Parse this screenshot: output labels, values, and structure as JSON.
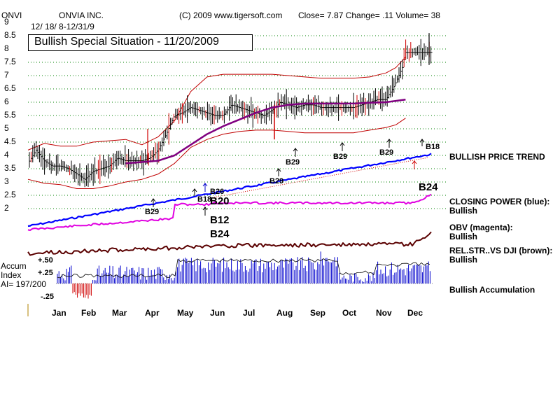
{
  "header": {
    "ticker": "ONVI",
    "company": "ONVIA INC.",
    "copyright": "(C) 2009 www.tigersoft.com",
    "stats": "Close=  7.87  Change= .11 Volume= 38",
    "date_range": "12/ 18/ 8-12/31/9"
  },
  "title": "Bullish Special Situation - 11/20/2009",
  "price_axis": {
    "ticks": [
      "9",
      "8.5",
      "8",
      "7.5",
      "7",
      "6.5",
      "6",
      "5.5",
      "5",
      "4.5",
      "4",
      "3.5",
      "3",
      "2.5",
      "2"
    ]
  },
  "months": [
    "Jan",
    "Feb",
    "Mar",
    "Apr",
    "May",
    "Jun",
    "Jul",
    "Aug",
    "Sep",
    "Oct",
    "Nov",
    "Dec"
  ],
  "signals": [
    "B29",
    "B18",
    "B26",
    "B20",
    "B12",
    "B24",
    "B29",
    "B29",
    "B29",
    "B29",
    "B18",
    "B24",
    "B24"
  ],
  "right_labels": {
    "trend": "BULLISH PRICE TREND",
    "cp_title": "CLOSING POWER (blue):",
    "cp_value": "Bullish",
    "obv_title": "OBV (magenta):",
    "obv_value": "Bullish",
    "rs_title": "REL.STR..VS DJI (brown):",
    "rs_value": "Bullish",
    "accum": "Bullish Accumulation"
  },
  "accum_panel": {
    "label1": "Accum",
    "label2": "Index",
    "ai": "AI= 197/200",
    "ticks": [
      "+.50",
      "+.25",
      "-.25"
    ]
  },
  "colors": {
    "price_bars": "#000000",
    "down_bars": "#d00000",
    "moving_average": "#800080",
    "bands": "#c00000",
    "trend_line": "#0000ff",
    "closing_power": "#0000cc",
    "obv": "#e000e0",
    "rel_strength": "#5a0000",
    "accum_bars": "#0000cc",
    "accum_negative": "#d00000",
    "grid": "#008000"
  },
  "chart_data": {
    "type": "line",
    "title": "Bullish Special Situation - 11/20/2009",
    "x_ticks": [
      "Jan",
      "Feb",
      "Mar",
      "Apr",
      "May",
      "Jun",
      "Jul",
      "Aug",
      "Sep",
      "Oct",
      "Nov",
      "Dec"
    ],
    "ylim": [
      2,
      9
    ],
    "grid": true,
    "series": [
      {
        "kind": "price_close",
        "x": [
          0,
          0.25,
          0.5,
          0.75,
          1,
          1.25,
          1.5,
          1.75,
          2,
          2.25,
          2.5,
          2.75,
          3,
          3.25,
          3.5,
          3.75,
          4,
          4.25,
          4.5,
          4.75,
          5,
          5.25,
          5.5,
          5.75,
          6,
          6.25,
          6.5,
          6.75,
          7,
          7.25,
          7.5,
          7.75,
          8,
          8.25,
          8.5,
          8.75,
          9,
          9.25,
          9.5,
          9.75,
          10,
          10.25,
          10.5,
          10.75,
          11,
          11.25,
          11.5,
          11.6
        ],
        "values": [
          3.7,
          4.2,
          3.8,
          3.6,
          3.6,
          3.5,
          3.3,
          3.1,
          3.4,
          3.5,
          3.6,
          3.9,
          3.8,
          3.8,
          3.8,
          3.9,
          4.2,
          4.8,
          5.5,
          5.6,
          5.8,
          5.7,
          5.6,
          5.5,
          5.5,
          5.9,
          5.8,
          5.7,
          5.6,
          5.5,
          5.7,
          6.0,
          5.9,
          5.8,
          5.9,
          5.9,
          5.8,
          5.8,
          5.8,
          5.8,
          5.8,
          5.9,
          6.0,
          6.1,
          6.1,
          6.6,
          7.3,
          7.87
        ]
      },
      {
        "kind": "moving_average",
        "x": [
          3,
          3.5,
          4,
          4.5,
          5,
          5.5,
          6,
          6.5,
          7,
          7.5,
          8,
          8.5,
          9,
          9.5,
          10,
          10.5,
          11,
          11.6
        ],
        "values": [
          3.7,
          3.75,
          3.8,
          4.0,
          4.4,
          4.8,
          5.1,
          5.35,
          5.6,
          5.8,
          5.9,
          5.95,
          5.95,
          5.95,
          5.95,
          5.98,
          6.0,
          6.1
        ]
      },
      {
        "kind": "upper_band",
        "x": [
          0,
          0.5,
          1,
          1.5,
          2,
          2.5,
          3,
          3.5,
          4,
          4.5,
          5,
          5.5,
          6,
          6.5,
          7,
          7.5,
          8,
          8.5,
          9,
          9.5,
          10,
          10.5,
          11,
          11.3,
          11.6
        ],
        "values": [
          4.2,
          4.45,
          4.35,
          4.35,
          4.5,
          4.55,
          4.6,
          4.4,
          4.7,
          5.3,
          6.4,
          6.95,
          7.05,
          7.05,
          7.05,
          7.05,
          7.0,
          6.95,
          6.9,
          6.9,
          6.9,
          6.95,
          7.1,
          7.3,
          7.7
        ]
      },
      {
        "kind": "lower_band",
        "x": [
          0,
          0.5,
          1,
          1.5,
          2,
          2.5,
          3,
          3.5,
          4,
          4.5,
          5,
          5.5,
          6,
          6.5,
          7,
          7.5,
          8,
          8.5,
          9,
          9.5,
          10,
          10.5,
          11,
          11.3,
          11.6
        ],
        "values": [
          3.1,
          2.95,
          2.9,
          2.75,
          2.75,
          2.85,
          3.0,
          3.1,
          3.3,
          3.7,
          4.3,
          4.6,
          4.8,
          4.9,
          4.95,
          4.95,
          4.9,
          4.85,
          4.85,
          4.85,
          4.85,
          4.95,
          5.05,
          5.15,
          5.4
        ]
      }
    ]
  }
}
